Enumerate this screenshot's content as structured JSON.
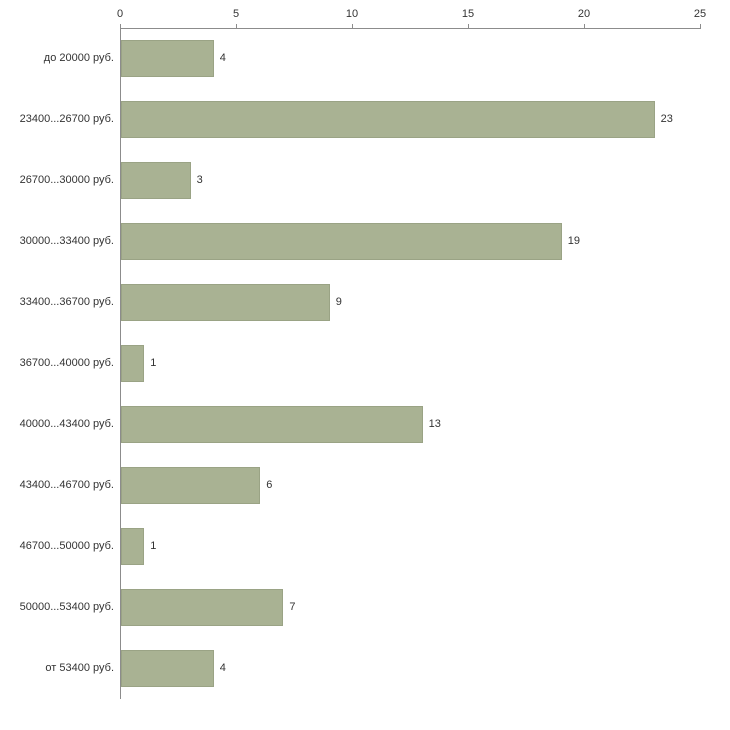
{
  "chart_data": {
    "type": "bar",
    "orientation": "horizontal",
    "title": "",
    "xlabel": "",
    "ylabel": "",
    "categories": [
      "до 20000 руб.",
      "23400...26700 руб.",
      "26700...30000 руб.",
      "30000...33400 руб.",
      "33400...36700 руб.",
      "36700...40000 руб.",
      "40000...43400 руб.",
      "43400...46700 руб.",
      "46700...50000 руб.",
      "50000...53400 руб.",
      "от 53400 руб."
    ],
    "values": [
      4,
      23,
      3,
      19,
      9,
      1,
      13,
      6,
      1,
      7,
      4
    ],
    "xlim": [
      0,
      25
    ],
    "x_ticks": [
      0,
      5,
      10,
      15,
      20,
      25
    ],
    "bar_color": "#a9b293",
    "axis_color": "#8c8c8c",
    "text_color": "#333333",
    "grid": false,
    "legend": false,
    "value_labels": true
  }
}
